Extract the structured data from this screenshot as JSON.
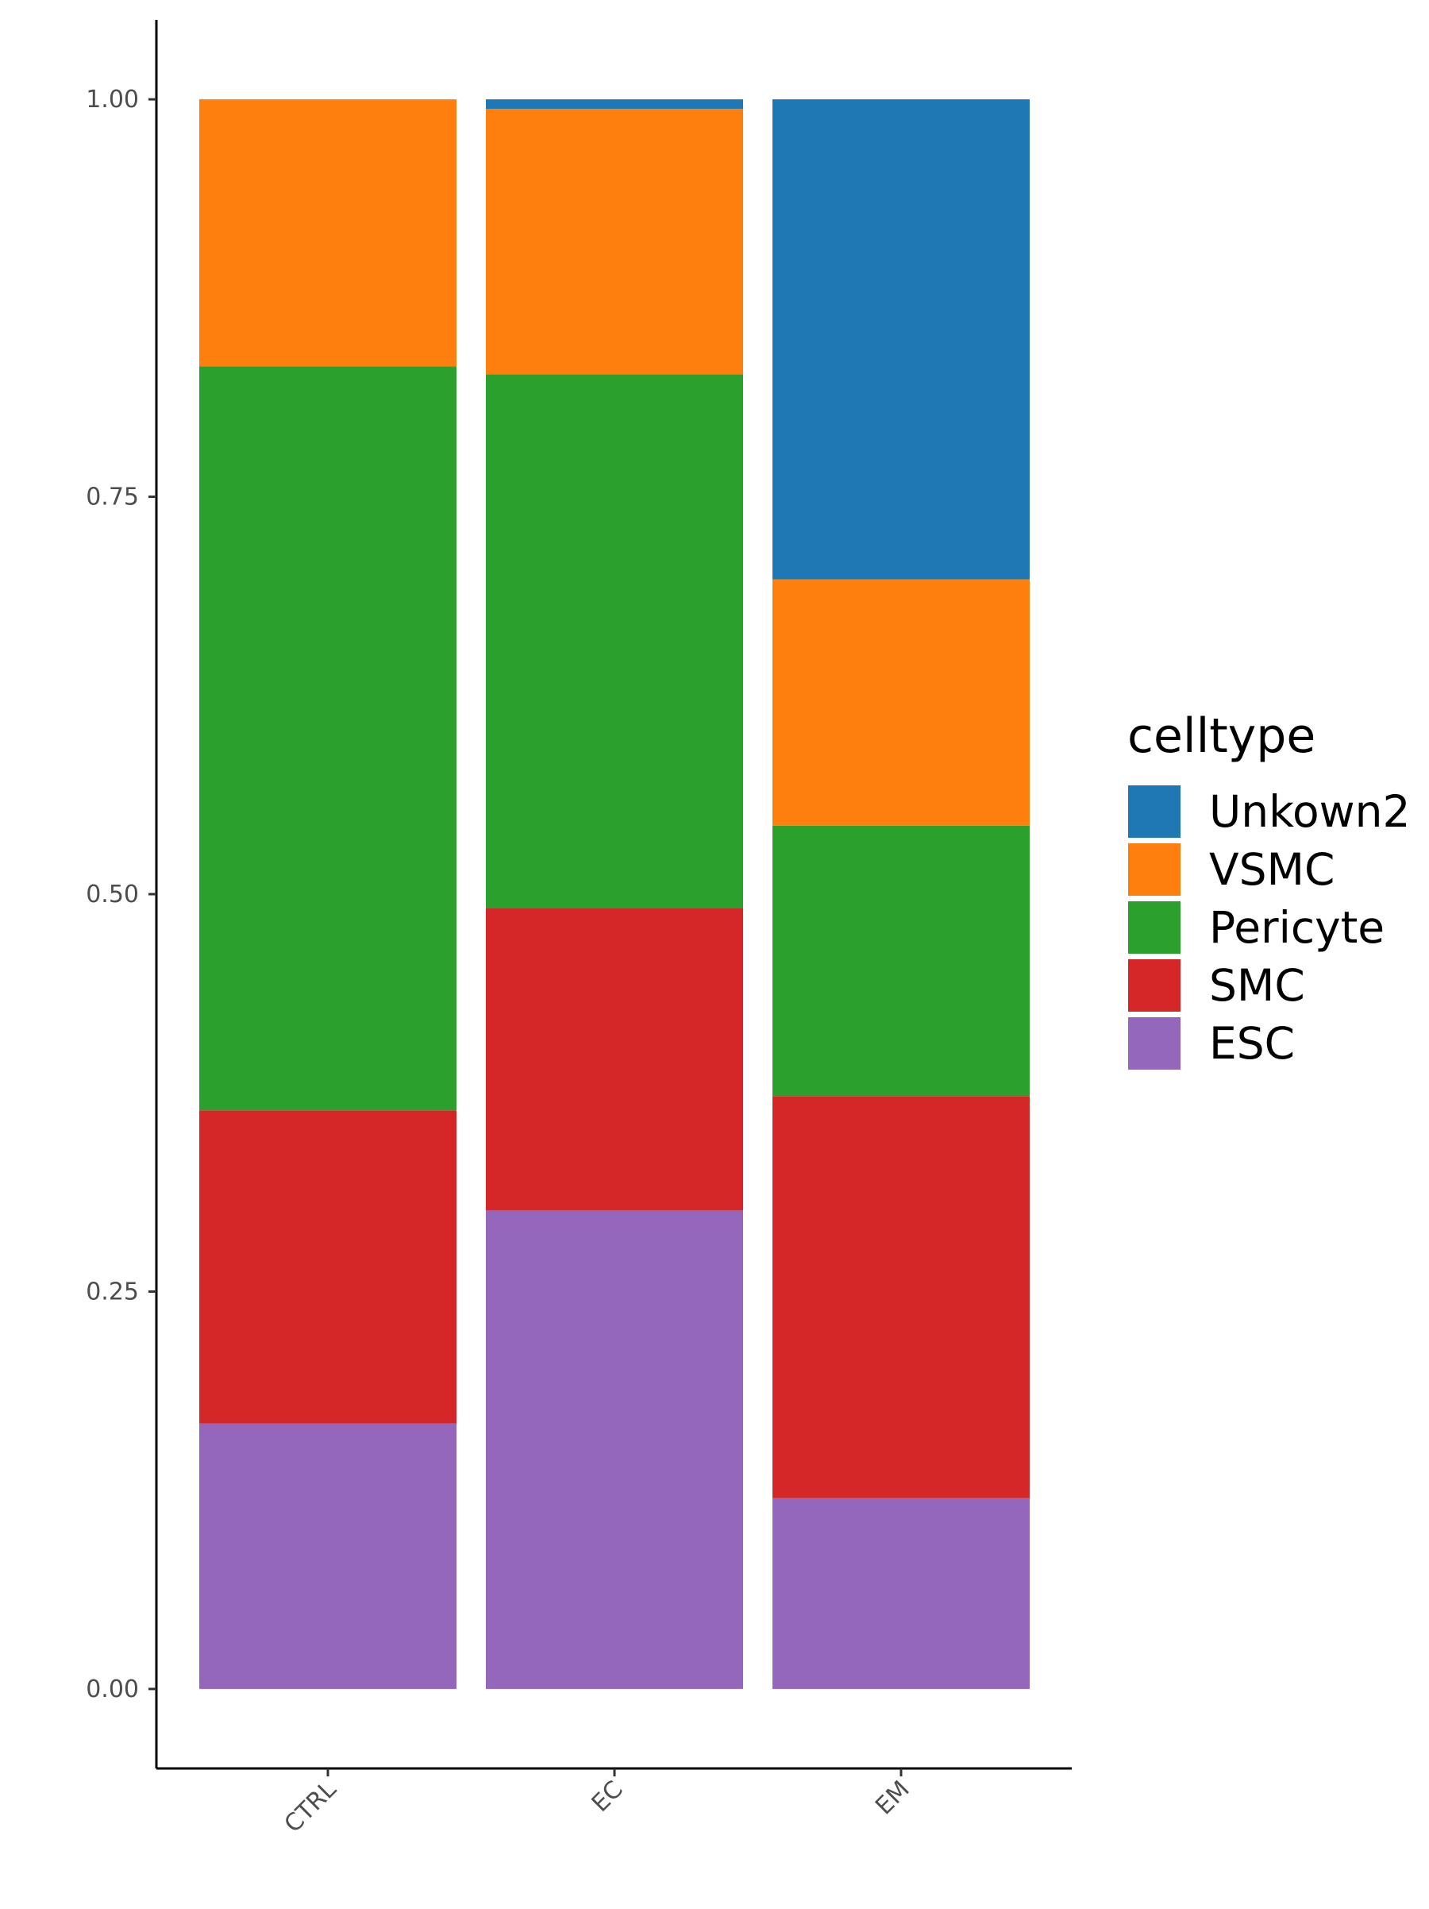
{
  "chart_data": {
    "type": "bar",
    "stacked": true,
    "categories": [
      "CTRL",
      "EC",
      "EM"
    ],
    "series": [
      {
        "name": "ESC",
        "color": "#9467BD",
        "values": [
          0.167,
          0.301,
          0.12
        ]
      },
      {
        "name": "SMC",
        "color": "#D62728",
        "values": [
          0.197,
          0.19,
          0.253
        ]
      },
      {
        "name": "Pericyte",
        "color": "#2CA02C",
        "values": [
          0.468,
          0.336,
          0.17
        ]
      },
      {
        "name": "VSMC",
        "color": "#FF7F0E",
        "values": [
          0.168,
          0.167,
          0.155
        ]
      },
      {
        "name": "Unkown2",
        "color": "#1F77B4",
        "values": [
          0.0,
          0.006,
          0.302
        ]
      }
    ],
    "ylim": [
      -0.05,
      1.05
    ],
    "yticks": [
      "0.00",
      "0.25",
      "0.50",
      "0.75",
      "1.00"
    ],
    "ytick_values": [
      0,
      0.25,
      0.5,
      0.75,
      1.0
    ],
    "xlabel": "",
    "ylabel": "",
    "title": "",
    "legend": {
      "title": "celltype",
      "position": "right",
      "order": [
        "Unkown2",
        "VSMC",
        "Pericyte",
        "SMC",
        "ESC"
      ]
    },
    "grid": false
  }
}
